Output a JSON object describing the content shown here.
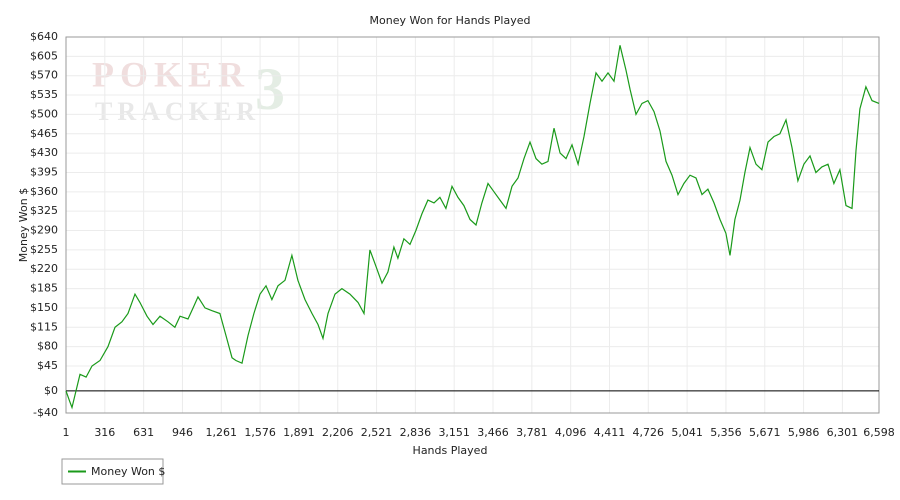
{
  "chart_data": {
    "type": "line",
    "title": "Money Won for Hands Played",
    "x_label": "Hands Played",
    "y_label": "Money Won $",
    "watermark": {
      "top": "POKER",
      "bottom": "TRACKER",
      "mark": "3"
    },
    "x": [
      1,
      33,
      50,
      82,
      115,
      164,
      212,
      277,
      342,
      399,
      455,
      504,
      561,
      601,
      658,
      707,
      764,
      829,
      885,
      926,
      991,
      1032,
      1072,
      1129,
      1186,
      1250,
      1299,
      1348,
      1380,
      1429,
      1478,
      1526,
      1575,
      1624,
      1672,
      1721,
      1778,
      1834,
      1883,
      1940,
      1997,
      2046,
      2086,
      2127,
      2184,
      2240,
      2305,
      2370,
      2419,
      2467,
      2508,
      2565,
      2613,
      2662,
      2694,
      2743,
      2792,
      2840,
      2889,
      2938,
      2987,
      3035,
      3084,
      3133,
      3182,
      3230,
      3279,
      3328,
      3376,
      3425,
      3474,
      3523,
      3571,
      3620,
      3669,
      3717,
      3766,
      3815,
      3863,
      3912,
      3961,
      4010,
      4058,
      4107,
      4156,
      4204,
      4253,
      4302,
      4350,
      4399,
      4448,
      4496,
      4545,
      4578,
      4626,
      4675,
      4723,
      4772,
      4821,
      4870,
      4918,
      4967,
      5015,
      5064,
      5113,
      5162,
      5210,
      5259,
      5308,
      5356,
      5389,
      5429,
      5470,
      5510,
      5551,
      5600,
      5648,
      5697,
      5746,
      5794,
      5843,
      5892,
      5940,
      5989,
      6038,
      6086,
      6135,
      6184,
      6232,
      6281,
      6330,
      6379,
      6411,
      6443,
      6492,
      6541,
      6598
    ],
    "series": [
      {
        "name": "Money Won $",
        "color": "#1a9a1a",
        "values": [
          0,
          -20,
          -30,
          0,
          30,
          25,
          45,
          55,
          80,
          115,
          125,
          140,
          175,
          160,
          135,
          120,
          135,
          125,
          115,
          135,
          130,
          150,
          170,
          150,
          145,
          140,
          100,
          60,
          55,
          50,
          100,
          140,
          175,
          190,
          165,
          190,
          200,
          245,
          200,
          165,
          140,
          120,
          95,
          140,
          175,
          185,
          175,
          160,
          140,
          255,
          230,
          195,
          215,
          260,
          240,
          275,
          265,
          290,
          320,
          345,
          340,
          350,
          330,
          370,
          350,
          335,
          310,
          300,
          340,
          375,
          360,
          345,
          330,
          370,
          385,
          420,
          450,
          420,
          410,
          415,
          475,
          430,
          420,
          445,
          410,
          460,
          520,
          575,
          560,
          575,
          560,
          625,
          580,
          545,
          500,
          520,
          525,
          505,
          470,
          415,
          390,
          355,
          375,
          390,
          385,
          355,
          365,
          340,
          310,
          285,
          245,
          310,
          345,
          395,
          440,
          410,
          400,
          450,
          460,
          465,
          490,
          440,
          380,
          410,
          425,
          395,
          405,
          410,
          375,
          400,
          335,
          330,
          435,
          510,
          550,
          525,
          520
        ]
      }
    ],
    "xlim": [
      1,
      6598
    ],
    "xticks": [
      1,
      316,
      631,
      946,
      {
        "value": 1261,
        "label": "1,261"
      },
      {
        "value": 1576,
        "label": "1,576"
      },
      {
        "value": 1891,
        "label": "1,891"
      },
      {
        "value": 2206,
        "label": "2,206"
      },
      {
        "value": 2521,
        "label": "2,521"
      },
      {
        "value": 2836,
        "label": "2,836"
      },
      {
        "value": 3151,
        "label": "3,151"
      },
      {
        "value": 3466,
        "label": "3,466"
      },
      {
        "value": 3781,
        "label": "3,781"
      },
      {
        "value": 4096,
        "label": "4,096"
      },
      {
        "value": 4411,
        "label": "4,411"
      },
      {
        "value": 4726,
        "label": "4,726"
      },
      {
        "value": 5041,
        "label": "5,041"
      },
      {
        "value": 5356,
        "label": "5,356"
      },
      {
        "value": 5671,
        "label": "5,671"
      },
      {
        "value": 5986,
        "label": "5,986"
      },
      {
        "value": 6301,
        "label": "6,301"
      },
      {
        "value": 6598,
        "label": "6,598"
      }
    ],
    "ylim": [
      -40,
      640
    ],
    "yticks": [
      {
        "value": -40,
        "label": "-$40"
      },
      {
        "value": 0,
        "label": "$0"
      },
      {
        "value": 45,
        "label": "$45"
      },
      {
        "value": 80,
        "label": "$80"
      },
      {
        "value": 115,
        "label": "$115"
      },
      {
        "value": 150,
        "label": "$150"
      },
      {
        "value": 185,
        "label": "$185"
      },
      {
        "value": 220,
        "label": "$220"
      },
      {
        "value": 255,
        "label": "$255"
      },
      {
        "value": 290,
        "label": "$290"
      },
      {
        "value": 325,
        "label": "$325"
      },
      {
        "value": 360,
        "label": "$360"
      },
      {
        "value": 395,
        "label": "$395"
      },
      {
        "value": 430,
        "label": "$430"
      },
      {
        "value": 465,
        "label": "$465"
      },
      {
        "value": 500,
        "label": "$500"
      },
      {
        "value": 535,
        "label": "$535"
      },
      {
        "value": 570,
        "label": "$570"
      },
      {
        "value": 605,
        "label": "$605"
      },
      {
        "value": 640,
        "label": "$640"
      }
    ],
    "grid": true,
    "legend": "bottom-left"
  }
}
